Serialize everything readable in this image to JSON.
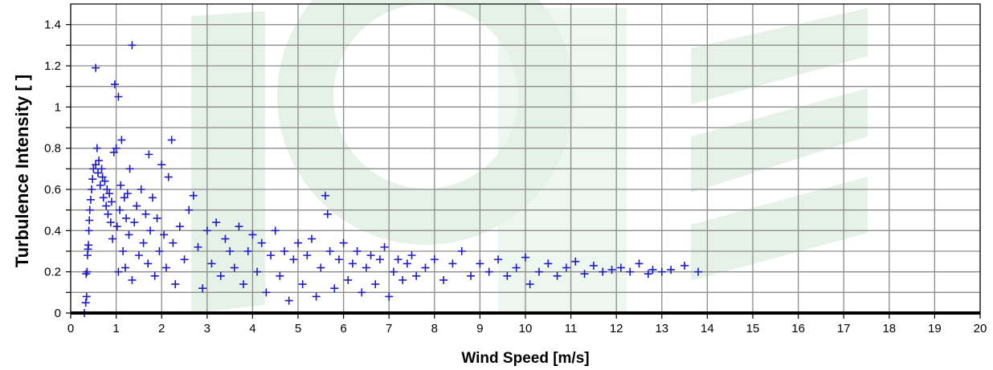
{
  "chart_data": {
    "type": "scatter",
    "title": "",
    "xlabel": "Wind Speed [m/s]",
    "ylabel": "Turbulence Intensity [ ]",
    "xlim": [
      0,
      20
    ],
    "ylim": [
      0,
      1.5
    ],
    "xticks": [
      "0",
      "1",
      "2",
      "3",
      "4",
      "5",
      "6",
      "7",
      "8",
      "9",
      "10",
      "11",
      "12",
      "13",
      "14",
      "15",
      "16",
      "17",
      "18",
      "19",
      "20"
    ],
    "yticks": [
      "0",
      "0.2",
      "0.4",
      "0.6",
      "0.8",
      "1",
      "1.2",
      "1.4"
    ],
    "grid": true,
    "legend": "none",
    "marker": "+",
    "colors": {
      "marker": "#1c1cc8",
      "grid": "#8c8c8c",
      "watermark": "#e6f2e8",
      "axis": "#000000"
    },
    "series": [
      {
        "points": [
          [
            0.3,
            0.0
          ],
          [
            0.33,
            0.05
          ],
          [
            0.35,
            0.08
          ],
          [
            0.34,
            0.19
          ],
          [
            0.36,
            0.2
          ],
          [
            0.37,
            0.28
          ],
          [
            0.38,
            0.31
          ],
          [
            0.39,
            0.33
          ],
          [
            0.4,
            0.4
          ],
          [
            0.41,
            0.45
          ],
          [
            0.42,
            0.5
          ],
          [
            0.44,
            0.55
          ],
          [
            0.46,
            0.6
          ],
          [
            0.48,
            0.65
          ],
          [
            0.5,
            0.7
          ],
          [
            0.55,
            1.19
          ],
          [
            0.55,
            0.72
          ],
          [
            0.58,
            0.8
          ],
          [
            0.6,
            0.68
          ],
          [
            0.62,
            0.74
          ],
          [
            0.65,
            0.62
          ],
          [
            0.68,
            0.7
          ],
          [
            0.7,
            0.66
          ],
          [
            0.72,
            0.56
          ],
          [
            0.75,
            0.64
          ],
          [
            0.78,
            0.52
          ],
          [
            0.8,
            0.6
          ],
          [
            0.82,
            0.48
          ],
          [
            0.85,
            0.58
          ],
          [
            0.88,
            0.44
          ],
          [
            0.9,
            0.54
          ],
          [
            0.92,
            0.36
          ],
          [
            0.95,
            0.78
          ],
          [
            0.97,
            1.11
          ],
          [
            1.0,
            0.8
          ],
          [
            1.02,
            0.42
          ],
          [
            1.05,
            1.05
          ],
          [
            1.05,
            0.2
          ],
          [
            1.08,
            0.5
          ],
          [
            1.1,
            0.62
          ],
          [
            1.12,
            0.84
          ],
          [
            1.15,
            0.3
          ],
          [
            1.18,
            0.56
          ],
          [
            1.2,
            0.22
          ],
          [
            1.22,
            0.46
          ],
          [
            1.25,
            0.58
          ],
          [
            1.28,
            0.38
          ],
          [
            1.3,
            0.7
          ],
          [
            1.35,
            1.3
          ],
          [
            1.35,
            0.16
          ],
          [
            1.4,
            0.44
          ],
          [
            1.45,
            0.52
          ],
          [
            1.5,
            0.28
          ],
          [
            1.55,
            0.6
          ],
          [
            1.6,
            0.34
          ],
          [
            1.65,
            0.48
          ],
          [
            1.7,
            0.24
          ],
          [
            1.72,
            0.77
          ],
          [
            1.75,
            0.4
          ],
          [
            1.8,
            0.56
          ],
          [
            1.85,
            0.18
          ],
          [
            1.9,
            0.46
          ],
          [
            1.95,
            0.3
          ],
          [
            2.0,
            0.72
          ],
          [
            2.05,
            0.38
          ],
          [
            2.1,
            0.22
          ],
          [
            2.15,
            0.66
          ],
          [
            2.22,
            0.84
          ],
          [
            2.25,
            0.34
          ],
          [
            2.3,
            0.14
          ],
          [
            2.4,
            0.42
          ],
          [
            2.5,
            0.26
          ],
          [
            2.6,
            0.5
          ],
          [
            2.7,
            0.57
          ],
          [
            2.8,
            0.32
          ],
          [
            2.9,
            0.12
          ],
          [
            3.0,
            0.4
          ],
          [
            3.1,
            0.24
          ],
          [
            3.2,
            0.44
          ],
          [
            3.3,
            0.18
          ],
          [
            3.4,
            0.36
          ],
          [
            3.5,
            0.3
          ],
          [
            3.6,
            0.22
          ],
          [
            3.7,
            0.42
          ],
          [
            3.8,
            0.14
          ],
          [
            3.9,
            0.3
          ],
          [
            4.0,
            0.38
          ],
          [
            4.1,
            0.2
          ],
          [
            4.2,
            0.34
          ],
          [
            4.3,
            0.1
          ],
          [
            4.4,
            0.28
          ],
          [
            4.5,
            0.4
          ],
          [
            4.6,
            0.18
          ],
          [
            4.7,
            0.3
          ],
          [
            4.8,
            0.06
          ],
          [
            4.9,
            0.26
          ],
          [
            5.0,
            0.34
          ],
          [
            5.1,
            0.14
          ],
          [
            5.2,
            0.28
          ],
          [
            5.3,
            0.36
          ],
          [
            5.4,
            0.08
          ],
          [
            5.5,
            0.22
          ],
          [
            5.6,
            0.57
          ],
          [
            5.65,
            0.48
          ],
          [
            5.7,
            0.3
          ],
          [
            5.8,
            0.12
          ],
          [
            5.9,
            0.26
          ],
          [
            6.0,
            0.34
          ],
          [
            6.1,
            0.16
          ],
          [
            6.2,
            0.24
          ],
          [
            6.3,
            0.3
          ],
          [
            6.4,
            0.1
          ],
          [
            6.5,
            0.22
          ],
          [
            6.6,
            0.28
          ],
          [
            6.7,
            0.14
          ],
          [
            6.8,
            0.26
          ],
          [
            6.9,
            0.32
          ],
          [
            7.0,
            0.08
          ],
          [
            7.1,
            0.2
          ],
          [
            7.2,
            0.26
          ],
          [
            7.3,
            0.16
          ],
          [
            7.4,
            0.24
          ],
          [
            7.5,
            0.28
          ],
          [
            7.6,
            0.18
          ],
          [
            7.8,
            0.22
          ],
          [
            8.0,
            0.26
          ],
          [
            8.2,
            0.16
          ],
          [
            8.4,
            0.24
          ],
          [
            8.6,
            0.3
          ],
          [
            8.8,
            0.18
          ],
          [
            9.0,
            0.24
          ],
          [
            9.2,
            0.2
          ],
          [
            9.4,
            0.26
          ],
          [
            9.6,
            0.18
          ],
          [
            9.8,
            0.22
          ],
          [
            10.0,
            0.27
          ],
          [
            10.1,
            0.14
          ],
          [
            10.3,
            0.2
          ],
          [
            10.5,
            0.24
          ],
          [
            10.7,
            0.18
          ],
          [
            10.9,
            0.22
          ],
          [
            11.1,
            0.25
          ],
          [
            11.3,
            0.19
          ],
          [
            11.5,
            0.23
          ],
          [
            11.7,
            0.2
          ],
          [
            11.9,
            0.21
          ],
          [
            12.1,
            0.22
          ],
          [
            12.3,
            0.2
          ],
          [
            12.5,
            0.24
          ],
          [
            12.7,
            0.19
          ],
          [
            12.8,
            0.21
          ],
          [
            13.0,
            0.2
          ],
          [
            13.2,
            0.21
          ],
          [
            13.5,
            0.23
          ],
          [
            13.8,
            0.2
          ]
        ]
      }
    ]
  }
}
